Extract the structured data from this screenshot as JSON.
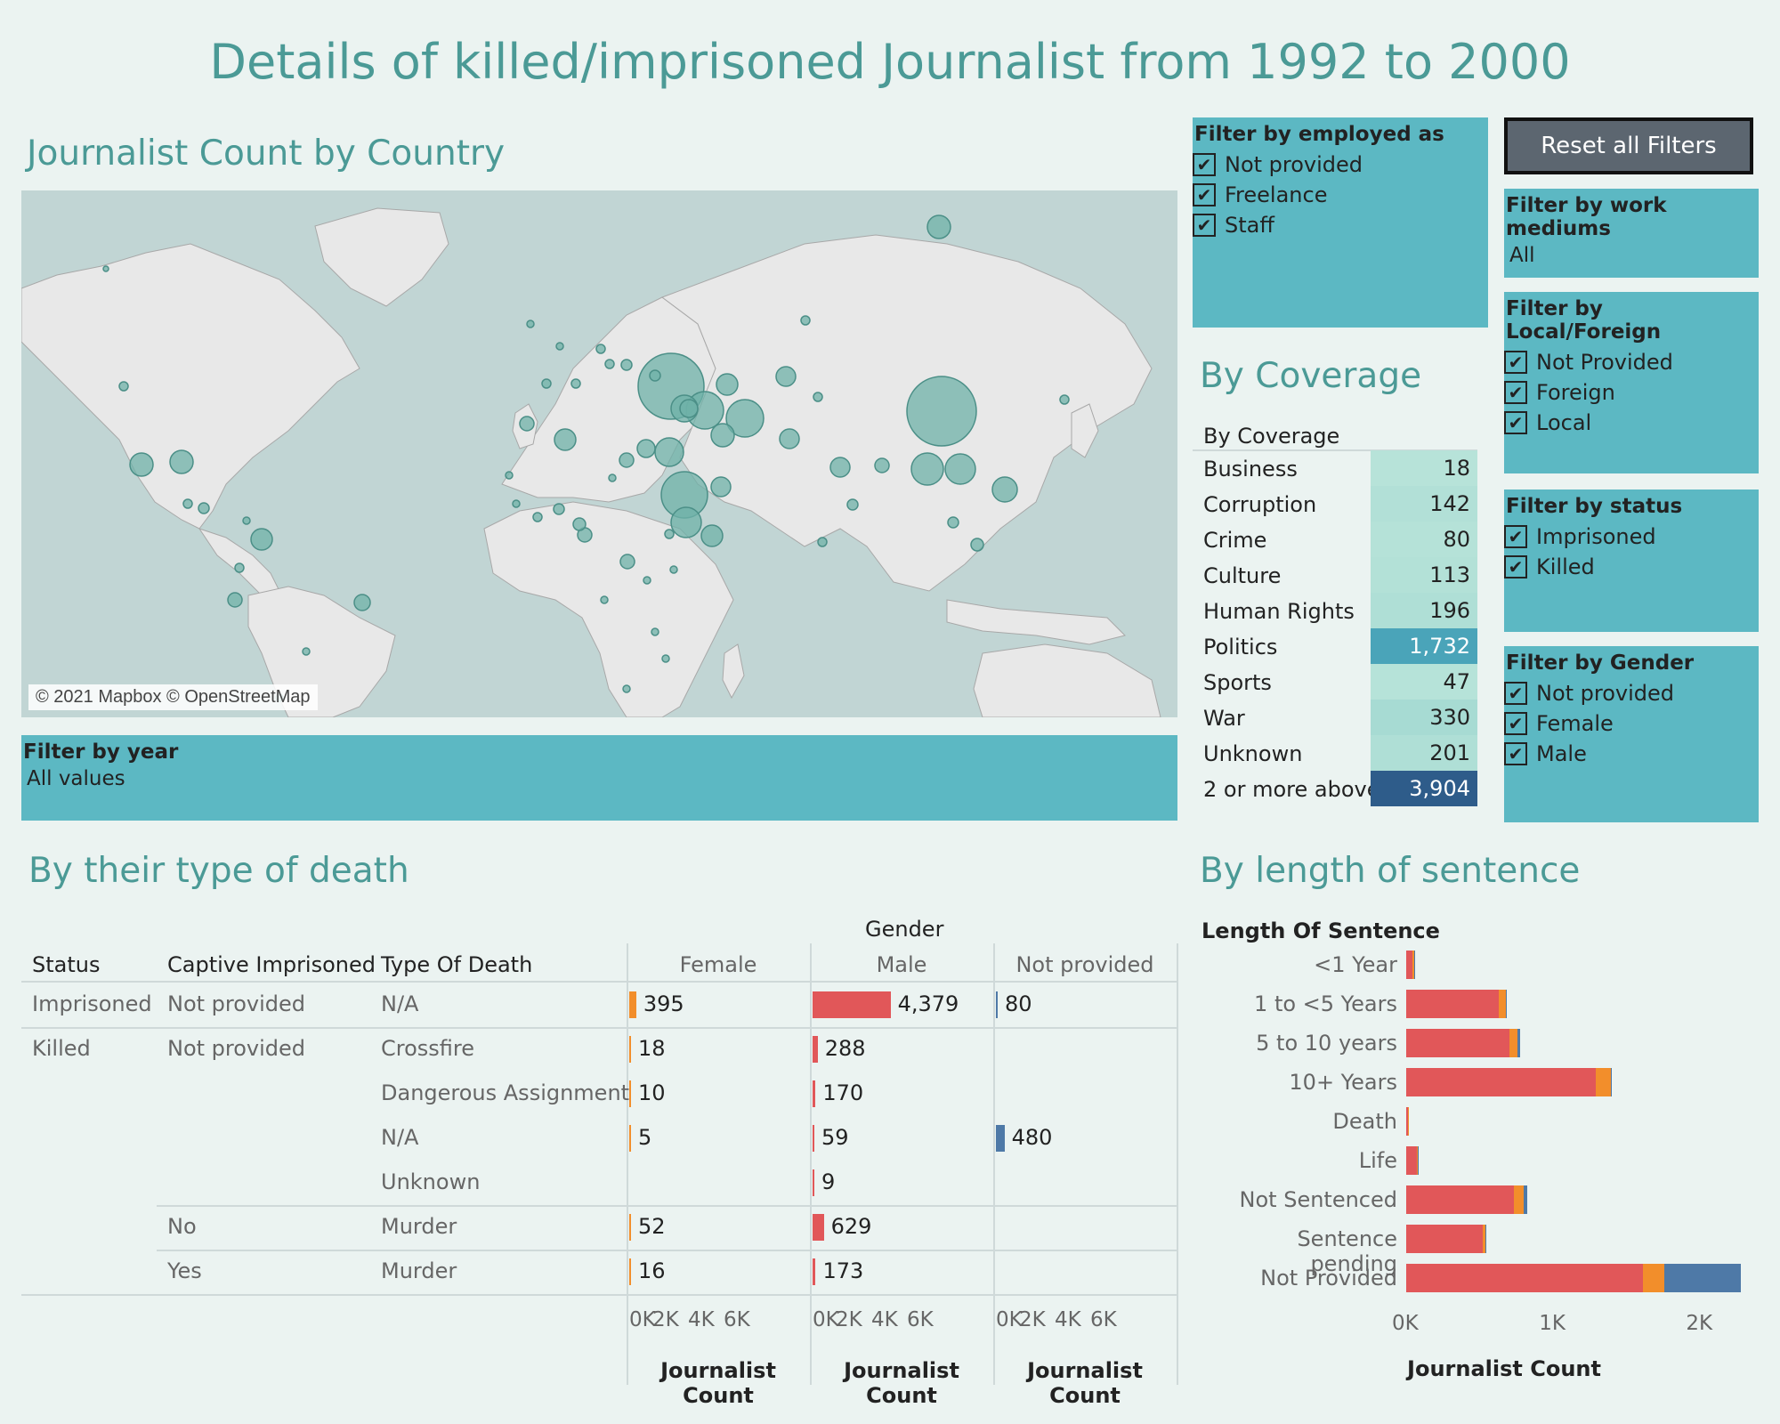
{
  "title": "Details of killed/imprisoned Journalist from 1992 to 2000",
  "map": {
    "title": "Journalist Count by Country",
    "copyright": "© 2021 Mapbox © OpenStreetMap"
  },
  "filters": {
    "year": {
      "title": "Filter by year",
      "value": "All values"
    },
    "employed": {
      "title": "Filter by employed as",
      "options": [
        "Not provided",
        "Freelance",
        "Staff"
      ]
    },
    "reset_label": "Reset all Filters",
    "mediums": {
      "title": "Filter by work mediums",
      "value": "All"
    },
    "local_foreign": {
      "title": "Filter by Local/Foreign",
      "options": [
        "Not Provided",
        "Foreign",
        "Local"
      ]
    },
    "status": {
      "title": "Filter by status",
      "options": [
        "Imprisoned",
        "Killed"
      ]
    },
    "gender": {
      "title": "Filter by Gender",
      "options": [
        "Not provided",
        "Female",
        "Male"
      ]
    },
    "checkmark": "✔"
  },
  "coverage": {
    "title": "By Coverage",
    "header": "By Coverage",
    "rows": [
      {
        "label": "Business",
        "value": "18",
        "color": "#b7e3d9"
      },
      {
        "label": "Corruption",
        "value": "142",
        "color": "#b2e0d7"
      },
      {
        "label": "Crime",
        "value": "80",
        "color": "#b5e2d8"
      },
      {
        "label": "Culture",
        "value": "113",
        "color": "#b3e1d7"
      },
      {
        "label": "Human Rights",
        "value": "196",
        "color": "#afdfd6"
      },
      {
        "label": "Politics",
        "value": "1,732",
        "color": "#4aa4b9",
        "light": true
      },
      {
        "label": "Sports",
        "value": "47",
        "color": "#b6e3d9"
      },
      {
        "label": "War",
        "value": "330",
        "color": "#a7dbd3"
      },
      {
        "label": "Unknown",
        "value": "201",
        "color": "#afdfd6"
      },
      {
        "label": "2 or more above",
        "value": "3,904",
        "color": "#2e5c8a",
        "light": true
      }
    ]
  },
  "death": {
    "title": "By their type of death",
    "gender_header": "Gender",
    "columns": [
      "Status",
      "Captive Imprisoned",
      "Type Of Death"
    ],
    "genders": [
      "Female",
      "Male",
      "Not provided"
    ],
    "gender_colors": [
      "#f28e2b",
      "#e15759",
      "#4e79a7"
    ],
    "axis_max": 8000,
    "axis_ticks": [
      "0K",
      "2K",
      "4K",
      "6K"
    ],
    "axis_label": "Journalist Count",
    "rows": [
      {
        "status": "Imprisoned",
        "captive": "Not provided",
        "type": "N/A",
        "values": [
          395,
          4379,
          80
        ],
        "labels": [
          "395",
          "4,379",
          "80"
        ]
      },
      {
        "status": "Killed",
        "captive": "Not provided",
        "type": "Crossfire",
        "values": [
          18,
          288,
          null
        ],
        "labels": [
          "18",
          "288",
          ""
        ]
      },
      {
        "status": "",
        "captive": "",
        "type": "Dangerous Assignment",
        "values": [
          10,
          170,
          null
        ],
        "labels": [
          "10",
          "170",
          ""
        ]
      },
      {
        "status": "",
        "captive": "",
        "type": "N/A",
        "values": [
          5,
          59,
          480
        ],
        "labels": [
          "5",
          "59",
          "480"
        ]
      },
      {
        "status": "",
        "captive": "",
        "type": "Unknown",
        "values": [
          null,
          9,
          null
        ],
        "labels": [
          "",
          "9",
          ""
        ]
      },
      {
        "status": "",
        "captive": "No",
        "type": "Murder",
        "values": [
          52,
          629,
          null
        ],
        "labels": [
          "52",
          "629",
          ""
        ]
      },
      {
        "status": "",
        "captive": "Yes",
        "type": "Murder",
        "values": [
          16,
          173,
          null
        ],
        "labels": [
          "16",
          "173",
          ""
        ]
      }
    ]
  },
  "sentence": {
    "title": "By length of sentence",
    "axis_header": "Length Of Sentence",
    "axis_label": "Journalist Count",
    "ticks": [
      {
        "label": "0K",
        "value": 0
      },
      {
        "label": "1K",
        "value": 1000
      },
      {
        "label": "2K",
        "value": 2000
      }
    ],
    "colors": [
      "#e15759",
      "#f28e2b",
      "#4e79a7"
    ],
    "rows": [
      {
        "label": "<1 Year",
        "values": [
          40,
          12,
          8
        ]
      },
      {
        "label": "1 to <5 Years",
        "values": [
          630,
          45,
          10
        ]
      },
      {
        "label": "5 to 10 years",
        "values": [
          700,
          55,
          18
        ]
      },
      {
        "label": "10+ Years",
        "values": [
          1290,
          100,
          6
        ]
      },
      {
        "label": "Death",
        "values": [
          12,
          2,
          0
        ]
      },
      {
        "label": "Life",
        "values": [
          70,
          10,
          5
        ]
      },
      {
        "label": "Not Sentenced",
        "values": [
          730,
          70,
          25
        ]
      },
      {
        "label": "Sentence pending",
        "values": [
          520,
          20,
          3
        ]
      },
      {
        "label": "Not Provided",
        "values": [
          1610,
          145,
          520
        ]
      }
    ]
  }
}
